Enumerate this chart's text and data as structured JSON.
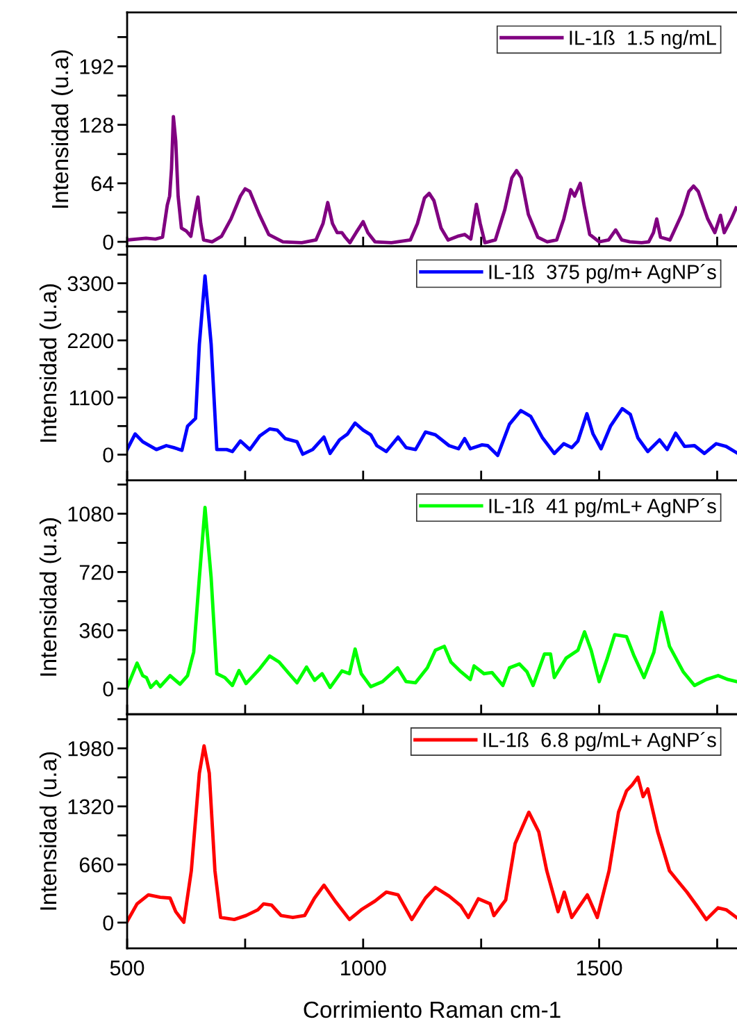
{
  "chart_data": [
    {
      "type": "line",
      "ylabel": "Intensidad (u.a)",
      "legend": "top right",
      "tick_labels": "y",
      "xlim": [
        500,
        1792
      ],
      "ylim": [
        -5,
        251
      ],
      "xticks": [
        500,
        {
          "value": 750,
          "label": null
        },
        1000,
        {
          "value": 1250,
          "label": null
        },
        1500,
        {
          "value": 1750,
          "label": null
        }
      ],
      "yticks": [
        0,
        {
          "value": 32,
          "label": null
        },
        64,
        {
          "value": 96,
          "label": null
        },
        128,
        {
          "value": 160,
          "label": null
        },
        192,
        {
          "value": 224,
          "label": null
        }
      ],
      "series": [
        {
          "name": "IL-1ß  1.5 ng/mL",
          "color": "#800080",
          "x": [
            500,
            540,
            560,
            575,
            585,
            590,
            594,
            598,
            603,
            608,
            615,
            625,
            635,
            643,
            650,
            656,
            662,
            680,
            700,
            720,
            740,
            750,
            760,
            780,
            800,
            830,
            870,
            900,
            915,
            925,
            935,
            945,
            955,
            962,
            972,
            985,
            1000,
            1010,
            1025,
            1060,
            1100,
            1115,
            1130,
            1140,
            1150,
            1165,
            1180,
            1200,
            1215,
            1228,
            1240,
            1248,
            1258,
            1280,
            1300,
            1315,
            1325,
            1335,
            1350,
            1370,
            1390,
            1410,
            1425,
            1440,
            1448,
            1460,
            1468,
            1480,
            1500,
            1520,
            1535,
            1548,
            1565,
            1590,
            1605,
            1615,
            1622,
            1630,
            1650,
            1675,
            1690,
            1700,
            1710,
            1730,
            1745,
            1757,
            1765,
            1780,
            1790
          ],
          "values": [
            2,
            4,
            3,
            5,
            40,
            50,
            80,
            137,
            110,
            50,
            15,
            12,
            6,
            30,
            49,
            20,
            2,
            0,
            6,
            25,
            50,
            58,
            55,
            30,
            8,
            0,
            -1,
            2,
            20,
            43,
            20,
            10,
            10,
            5,
            -1,
            10,
            22,
            10,
            0,
            -1,
            2,
            20,
            48,
            53,
            45,
            15,
            2,
            6,
            8,
            3,
            41,
            20,
            -1,
            2,
            35,
            70,
            78,
            70,
            30,
            5,
            0,
            2,
            25,
            57,
            50,
            64,
            40,
            8,
            0,
            2,
            13,
            2,
            0,
            -1,
            0,
            10,
            25,
            5,
            2,
            30,
            55,
            61,
            55,
            25,
            10,
            29,
            10,
            25,
            37
          ]
        }
      ]
    },
    {
      "type": "line",
      "ylabel": "Intensidad (u.a)",
      "legend": "top right",
      "tick_labels": "y",
      "xlim": [
        500,
        1792
      ],
      "ylim": [
        -495,
        4010
      ],
      "xticks": [
        500,
        {
          "value": 750,
          "label": null
        },
        1000,
        {
          "value": 1250,
          "label": null
        },
        1500,
        {
          "value": 1750,
          "label": null
        }
      ],
      "yticks": [
        0,
        {
          "value": 550,
          "label": null
        },
        1100,
        {
          "value": 1650,
          "label": null
        },
        2200,
        {
          "value": 2750,
          "label": null
        },
        3300,
        {
          "value": 3850,
          "label": null
        }
      ],
      "series": [
        {
          "name": "IL-1ß  375 pg/m+ AgNP´s",
          "color": "#0000ff",
          "x": [
            500,
            517,
            533,
            562,
            583,
            599,
            616,
            628,
            645,
            653,
            665,
            678,
            690,
            711,
            723,
            740,
            760,
            781,
            802,
            818,
            835,
            860,
            872,
            893,
            917,
            930,
            950,
            967,
            983,
            1000,
            1016,
            1029,
            1049,
            1074,
            1091,
            1111,
            1132,
            1153,
            1182,
            1202,
            1215,
            1227,
            1252,
            1264,
            1285,
            1310,
            1334,
            1355,
            1380,
            1405,
            1425,
            1442,
            1455,
            1474,
            1487,
            1504,
            1524,
            1549,
            1566,
            1582,
            1603,
            1628,
            1644,
            1662,
            1681,
            1702,
            1723,
            1748,
            1769,
            1791
          ],
          "values": [
            98,
            398,
            248,
            98,
            173,
            135,
            83,
            548,
            698,
            2125,
            3440,
            2125,
            98,
            98,
            60,
            263,
            98,
            360,
            496,
            473,
            308,
            248,
            8,
            98,
            338,
            23,
            285,
            398,
            608,
            473,
            383,
            173,
            60,
            338,
            135,
            98,
            436,
            383,
            173,
            113,
            308,
            113,
            188,
            173,
            -15,
            586,
            849,
            736,
            323,
            23,
            210,
            135,
            263,
            789,
            398,
            113,
            548,
            886,
            774,
            323,
            60,
            285,
            98,
            413,
            158,
            173,
            23,
            210,
            158,
            38
          ]
        }
      ]
    },
    {
      "type": "line",
      "ylabel": "Intensidad (u.a)",
      "legend": "top right",
      "tick_labels": "y",
      "xlim": [
        500,
        1792
      ],
      "ylim": [
        -159,
        1286
      ],
      "xticks": [
        500,
        {
          "value": 750,
          "label": null
        },
        1000,
        {
          "value": 1250,
          "label": null
        },
        1500,
        {
          "value": 1750,
          "label": null
        }
      ],
      "yticks": [
        0,
        {
          "value": 180,
          "label": null
        },
        360,
        {
          "value": 540,
          "label": null
        },
        720,
        {
          "value": 900,
          "label": null
        },
        1080,
        {
          "value": 1260,
          "label": null
        }
      ],
      "series": [
        {
          "name": "IL-1ß  41 pg/mL+ AgNP´s",
          "color": "#00ff00",
          "x": [
            500,
            521,
            533,
            541,
            550,
            562,
            570,
            591,
            612,
            628,
            641,
            653,
            665,
            678,
            690,
            707,
            723,
            737,
            752,
            781,
            802,
            822,
            843,
            860,
            880,
            897,
            913,
            930,
            955,
            971,
            983,
            996,
            1016,
            1041,
            1073,
            1091,
            1111,
            1136,
            1153,
            1172,
            1186,
            1207,
            1227,
            1235,
            1256,
            1273,
            1296,
            1310,
            1331,
            1347,
            1360,
            1384,
            1397,
            1405,
            1430,
            1455,
            1469,
            1483,
            1500,
            1516,
            1533,
            1558,
            1574,
            1595,
            1616,
            1632,
            1649,
            1678,
            1702,
            1727,
            1752,
            1773,
            1791
          ],
          "values": [
            7,
            157,
            80,
            68,
            7,
            43,
            12,
            80,
            27,
            80,
            225,
            684,
            1119,
            684,
            92,
            68,
            19,
            111,
            31,
            123,
            201,
            164,
            92,
            36,
            133,
            51,
            92,
            7,
            109,
            92,
            244,
            92,
            12,
            43,
            128,
            43,
            36,
            128,
            237,
            261,
            164,
            104,
            56,
            140,
            92,
            99,
            19,
            128,
            152,
            104,
            19,
            213,
            213,
            68,
            188,
            237,
            350,
            237,
            43,
            176,
            333,
            321,
            201,
            68,
            225,
            471,
            261,
            104,
            19,
            56,
            80,
            56,
            43
          ]
        }
      ]
    },
    {
      "type": "line",
      "ylabel": "Intensidad (u.a)",
      "xlabel": "Corrimiento Raman cm-1",
      "legend": "top right",
      "xlim": [
        500,
        1792
      ],
      "ylim": [
        -292,
        2366
      ],
      "xticks": [
        500,
        {
          "value": 750,
          "label": null
        },
        1000,
        {
          "value": 1250,
          "label": null
        },
        1500,
        {
          "value": 1750,
          "label": null
        }
      ],
      "yticks": [
        0,
        {
          "value": 330,
          "label": null
        },
        660,
        {
          "value": 990,
          "label": null
        },
        1320,
        {
          "value": 1650,
          "label": null
        },
        1980,
        {
          "value": 2310,
          "label": null
        }
      ],
      "series": [
        {
          "name": "IL-1ß  6.8 pg/mL+ AgNP´s",
          "color": "#ff0000",
          "x": [
            500,
            521,
            545,
            570,
            591,
            603,
            620,
            636,
            653,
            663,
            674,
            686,
            698,
            727,
            752,
            777,
            789,
            806,
            826,
            851,
            876,
            897,
            917,
            942,
            971,
            996,
            1025,
            1049,
            1074,
            1103,
            1132,
            1153,
            1182,
            1207,
            1223,
            1244,
            1269,
            1277,
            1302,
            1322,
            1351,
            1372,
            1389,
            1413,
            1426,
            1442,
            1459,
            1475,
            1496,
            1521,
            1541,
            1558,
            1570,
            1582,
            1593,
            1603,
            1624,
            1649,
            1669,
            1686,
            1710,
            1727,
            1752,
            1769,
            1791
          ],
          "values": [
            13,
            213,
            315,
            288,
            279,
            124,
            4,
            589,
            1697,
            2007,
            1697,
            589,
            58,
            35,
            80,
            146,
            213,
            199,
            80,
            58,
            80,
            279,
            425,
            235,
            35,
            146,
            244,
            346,
            315,
            35,
            279,
            399,
            301,
            190,
            58,
            270,
            213,
            80,
            257,
            899,
            1254,
            1032,
            589,
            124,
            346,
            58,
            190,
            315,
            58,
            589,
            1254,
            1497,
            1564,
            1652,
            1431,
            1519,
            1032,
            589,
            456,
            346,
            168,
            35,
            168,
            146,
            58
          ]
        }
      ]
    }
  ]
}
